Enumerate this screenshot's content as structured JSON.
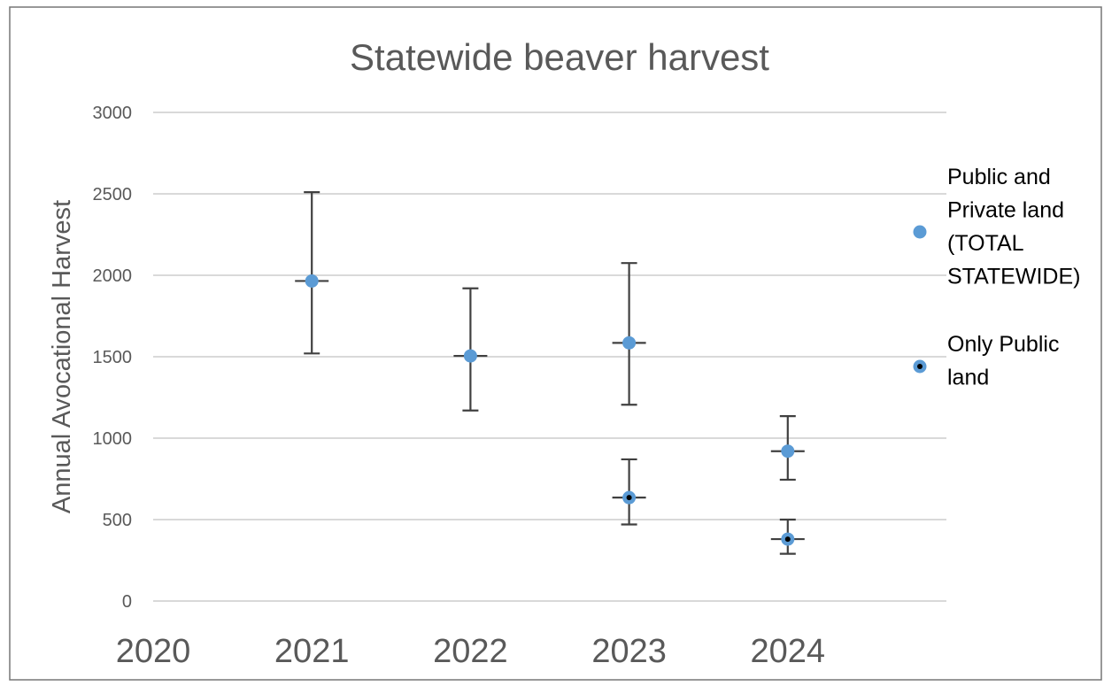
{
  "chart_data": {
    "type": "scatter",
    "title": "Statewide beaver harvest",
    "xlabel": "",
    "ylabel": "Annual Avocational Harvest",
    "x_ticks": [
      "2020",
      "2021",
      "2022",
      "2023",
      "2024"
    ],
    "xlim": [
      2020,
      2025
    ],
    "y_ticks": [
      "0",
      "500",
      "1000",
      "1500",
      "2000",
      "2500",
      "3000"
    ],
    "ylim": [
      0,
      3000
    ],
    "grid": "horizontal",
    "legend_position": "right",
    "series": [
      {
        "name": "Public and Private land (TOTAL STATEWIDE)",
        "legend_lines": [
          "Public and",
          "Private land",
          "(TOTAL",
          "STATEWIDE)"
        ],
        "color": "#5B9BD5",
        "marker": "circle",
        "points": [
          {
            "x": 2021,
            "y": 1965,
            "err_low": 1520,
            "err_high": 2510
          },
          {
            "x": 2022,
            "y": 1505,
            "err_low": 1170,
            "err_high": 1920
          },
          {
            "x": 2023,
            "y": 1585,
            "err_low": 1205,
            "err_high": 2075
          },
          {
            "x": 2024,
            "y": 920,
            "err_low": 745,
            "err_high": 1135
          }
        ]
      },
      {
        "name": "Only Public land",
        "legend_lines": [
          "Only Public",
          "land"
        ],
        "color": "#5B9BD5",
        "dot_color": "#000000",
        "marker": "circle-dot",
        "points": [
          {
            "x": 2023,
            "y": 635,
            "err_low": 470,
            "err_high": 870
          },
          {
            "x": 2024,
            "y": 380,
            "err_low": 290,
            "err_high": 500
          }
        ]
      }
    ],
    "colors": {
      "gridline": "#D9D9D9",
      "error_bar": "#404040",
      "axis_text": "#595959",
      "frame": "#767676"
    }
  }
}
